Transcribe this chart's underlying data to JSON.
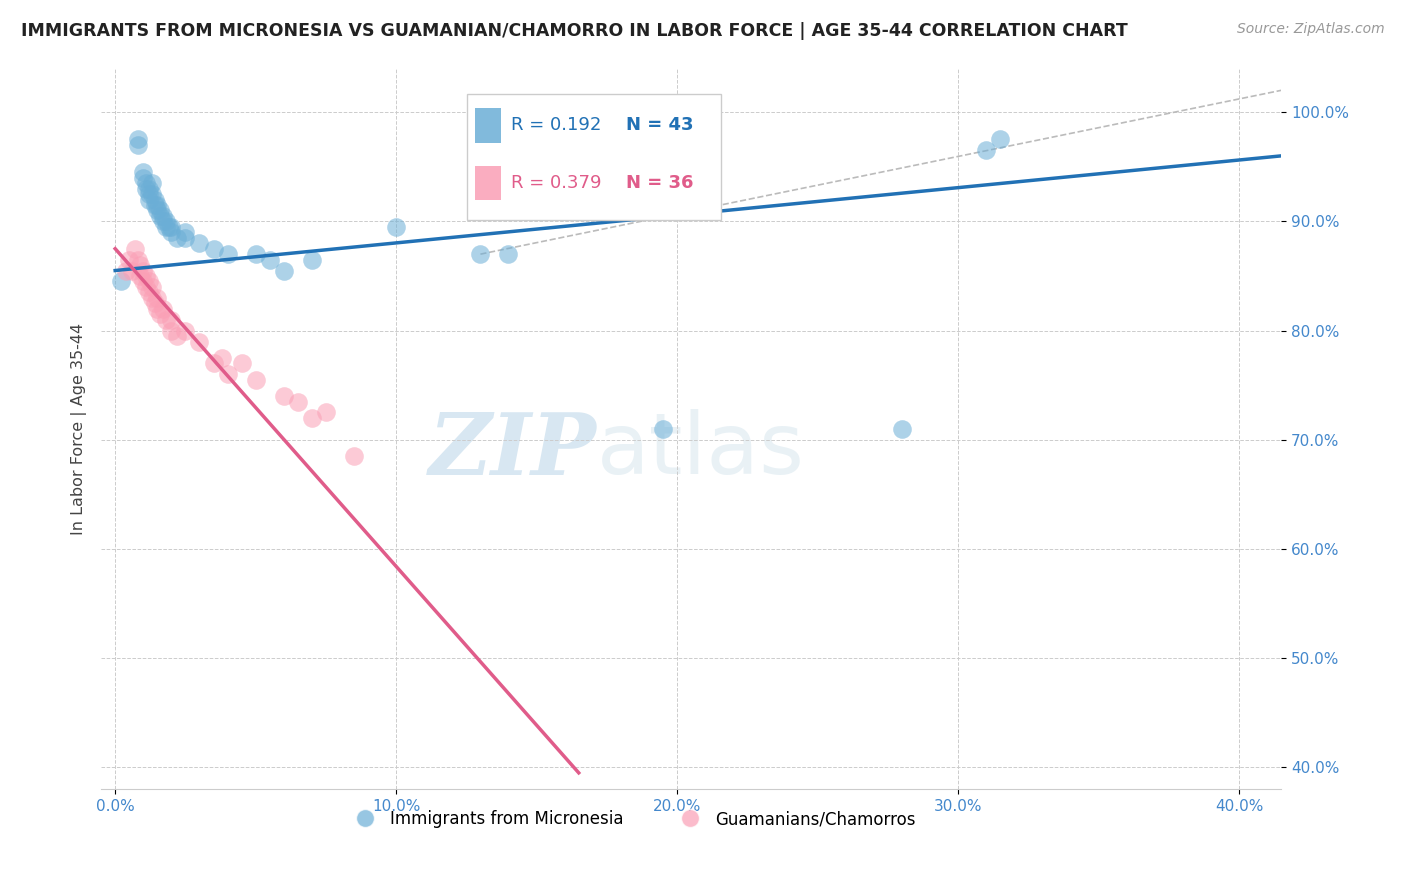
{
  "title": "IMMIGRANTS FROM MICRONESIA VS GUAMANIAN/CHAMORRO IN LABOR FORCE | AGE 35-44 CORRELATION CHART",
  "source": "Source: ZipAtlas.com",
  "ylabel": "In Labor Force | Age 35-44",
  "xlim": [
    -0.005,
    0.415
  ],
  "ylim": [
    0.38,
    1.04
  ],
  "x_ticks": [
    0.0,
    0.1,
    0.2,
    0.3,
    0.4
  ],
  "x_tick_labels": [
    "0.0%",
    "10.0%",
    "20.0%",
    "30.0%",
    "40.0%"
  ],
  "y_ticks": [
    0.4,
    0.5,
    0.6,
    0.7,
    0.8,
    0.9,
    1.0
  ],
  "y_tick_labels": [
    "40.0%",
    "50.0%",
    "60.0%",
    "70.0%",
    "80.0%",
    "90.0%",
    "100.0%"
  ],
  "blue_color": "#6baed6",
  "pink_color": "#fa9fb5",
  "blue_line_color": "#2171b5",
  "pink_line_color": "#e05c8a",
  "legend_blue_R": "R = 0.192",
  "legend_blue_N": "N = 43",
  "legend_pink_R": "R = 0.379",
  "legend_pink_N": "N = 36",
  "legend_label_blue": "Immigrants from Micronesia",
  "legend_label_pink": "Guamanians/Chamorros",
  "watermark_zip": "ZIP",
  "watermark_atlas": "atlas",
  "blue_scatter_x": [
    0.002,
    0.008,
    0.008,
    0.01,
    0.01,
    0.011,
    0.011,
    0.012,
    0.012,
    0.012,
    0.013,
    0.013,
    0.014,
    0.014,
    0.015,
    0.015,
    0.016,
    0.016,
    0.017,
    0.017,
    0.018,
    0.018,
    0.019,
    0.02,
    0.02,
    0.022,
    0.025,
    0.025,
    0.03,
    0.035,
    0.04,
    0.05,
    0.055,
    0.06,
    0.07,
    0.1,
    0.13,
    0.14,
    0.155,
    0.195,
    0.28,
    0.31,
    0.315
  ],
  "blue_scatter_y": [
    0.845,
    0.97,
    0.975,
    0.94,
    0.945,
    0.93,
    0.935,
    0.92,
    0.925,
    0.93,
    0.925,
    0.935,
    0.915,
    0.92,
    0.91,
    0.915,
    0.905,
    0.91,
    0.9,
    0.905,
    0.895,
    0.9,
    0.895,
    0.89,
    0.895,
    0.885,
    0.89,
    0.885,
    0.88,
    0.875,
    0.87,
    0.87,
    0.865,
    0.855,
    0.865,
    0.895,
    0.87,
    0.87,
    0.955,
    0.71,
    0.71,
    0.965,
    0.975
  ],
  "pink_scatter_x": [
    0.004,
    0.005,
    0.006,
    0.007,
    0.008,
    0.009,
    0.009,
    0.01,
    0.01,
    0.011,
    0.011,
    0.012,
    0.012,
    0.013,
    0.013,
    0.014,
    0.015,
    0.015,
    0.016,
    0.017,
    0.018,
    0.02,
    0.02,
    0.022,
    0.025,
    0.03,
    0.035,
    0.038,
    0.04,
    0.045,
    0.05,
    0.06,
    0.065,
    0.07,
    0.075,
    0.085
  ],
  "pink_scatter_y": [
    0.855,
    0.865,
    0.855,
    0.875,
    0.865,
    0.85,
    0.86,
    0.845,
    0.855,
    0.84,
    0.85,
    0.835,
    0.845,
    0.83,
    0.84,
    0.825,
    0.82,
    0.83,
    0.815,
    0.82,
    0.81,
    0.8,
    0.81,
    0.795,
    0.8,
    0.79,
    0.77,
    0.775,
    0.76,
    0.77,
    0.755,
    0.74,
    0.735,
    0.72,
    0.725,
    0.685
  ],
  "blue_trend_x": [
    0.0,
    0.415
  ],
  "blue_trend_y": [
    0.855,
    0.96
  ],
  "pink_trend_x": [
    0.0,
    0.165
  ],
  "pink_trend_y": [
    0.875,
    0.395
  ],
  "diag_line_x": [
    0.13,
    0.415
  ],
  "diag_line_y": [
    0.87,
    1.02
  ]
}
